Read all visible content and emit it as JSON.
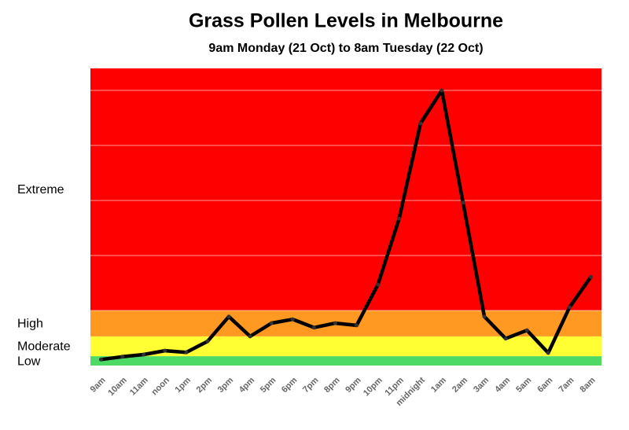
{
  "chart_data": {
    "type": "line",
    "title": "Grass Pollen Levels in Melbourne",
    "subtitle": "9am Monday (21 Oct) to 8am Tuesday (22 Oct)",
    "categories": [
      "9am",
      "10am",
      "11am",
      "noon",
      "1pm",
      "2pm",
      "3pm",
      "4pm",
      "5pm",
      "6pm",
      "7pm",
      "8pm",
      "9pm",
      "10pm",
      "11pm",
      "midnight",
      "1am",
      "2am",
      "3am",
      "4am",
      "5am",
      "6am",
      "7am",
      "8am"
    ],
    "values": [
      11,
      16,
      20,
      27,
      24,
      44,
      89,
      53,
      77,
      84,
      69,
      77,
      73,
      147,
      267,
      440,
      500,
      296,
      89,
      49,
      64,
      23,
      106,
      161
    ],
    "color": "#000000",
    "ylim": [
      0,
      540
    ],
    "gridlines": [
      100,
      200,
      300,
      400,
      500
    ],
    "bands": [
      {
        "label": "Low",
        "from": 0,
        "to": 17,
        "color": "#4cd964"
      },
      {
        "label": "Moderate",
        "from": 17,
        "to": 53,
        "color": "#ffff33"
      },
      {
        "label": "High",
        "from": 53,
        "to": 100,
        "color": "#ff9922"
      },
      {
        "label": "Extreme",
        "from": 100,
        "to": 540,
        "color": "#ff0000"
      }
    ]
  }
}
